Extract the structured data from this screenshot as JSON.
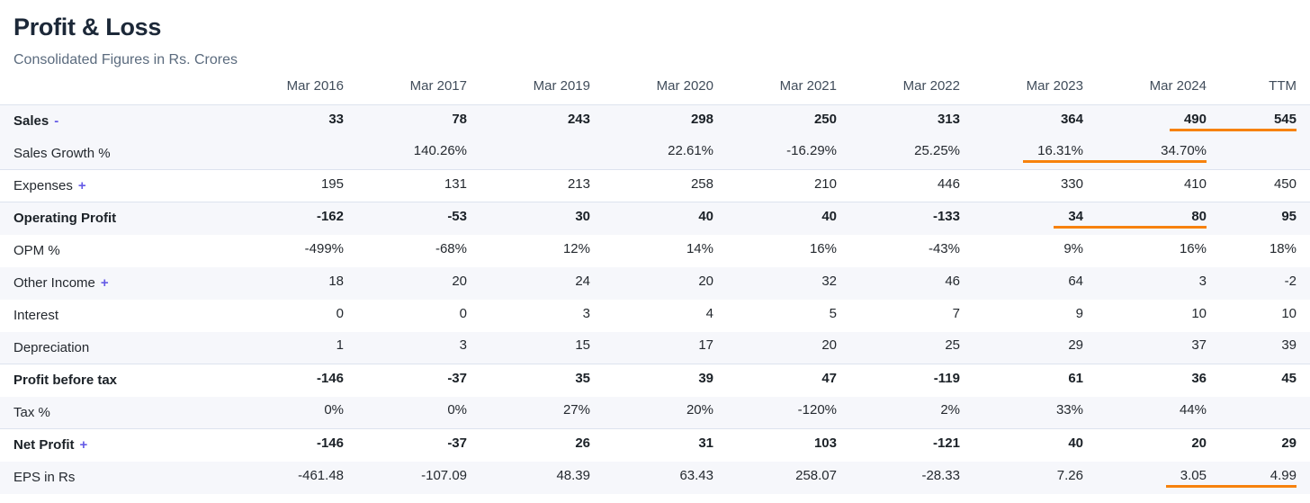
{
  "header": {
    "title": "Profit & Loss",
    "subtitle": "Consolidated Figures in Rs. Crores"
  },
  "table": {
    "columns": [
      "Mar 2016",
      "Mar 2017",
      "Mar 2019",
      "Mar 2020",
      "Mar 2021",
      "Mar 2022",
      "Mar 2023",
      "Mar 2024",
      "TTM"
    ],
    "rows": [
      {
        "label": "Sales",
        "suffix": "-",
        "bold": true,
        "values": [
          "33",
          "78",
          "243",
          "298",
          "250",
          "313",
          "364",
          "490",
          "545"
        ],
        "highlighted_columns": [
          7,
          8
        ]
      },
      {
        "label": "Sales Growth %",
        "divider": true,
        "values": [
          "",
          "140.26%",
          "",
          "22.61%",
          "-16.29%",
          "25.25%",
          "16.31%",
          "34.70%",
          ""
        ],
        "highlighted_columns": [
          6,
          7
        ]
      },
      {
        "label": "Expenses",
        "suffix": "+",
        "divider": true,
        "values": [
          "195",
          "131",
          "213",
          "258",
          "210",
          "446",
          "330",
          "410",
          "450"
        ]
      },
      {
        "label": "Operating Profit",
        "bold": true,
        "values": [
          "-162",
          "-53",
          "30",
          "40",
          "40",
          "-133",
          "34",
          "80",
          "95"
        ],
        "highlighted_columns": [
          6,
          7
        ]
      },
      {
        "label": "OPM %",
        "values": [
          "-499%",
          "-68%",
          "12%",
          "14%",
          "16%",
          "-43%",
          "9%",
          "16%",
          "18%"
        ]
      },
      {
        "label": "Other Income",
        "suffix": "+",
        "values": [
          "18",
          "20",
          "24",
          "20",
          "32",
          "46",
          "64",
          "3",
          "-2"
        ]
      },
      {
        "label": "Interest",
        "values": [
          "0",
          "0",
          "3",
          "4",
          "5",
          "7",
          "9",
          "10",
          "10"
        ]
      },
      {
        "label": "Depreciation",
        "divider": true,
        "values": [
          "1",
          "3",
          "15",
          "17",
          "20",
          "25",
          "29",
          "37",
          "39"
        ]
      },
      {
        "label": "Profit before tax",
        "bold": true,
        "values": [
          "-146",
          "-37",
          "35",
          "39",
          "47",
          "-119",
          "61",
          "36",
          "45"
        ]
      },
      {
        "label": "Tax %",
        "divider": true,
        "values": [
          "0%",
          "0%",
          "27%",
          "20%",
          "-120%",
          "2%",
          "33%",
          "44%",
          ""
        ]
      },
      {
        "label": "Net Profit",
        "suffix": "+",
        "bold": true,
        "values": [
          "-146",
          "-37",
          "26",
          "31",
          "103",
          "-121",
          "40",
          "20",
          "29"
        ]
      },
      {
        "label": "EPS in Rs",
        "values": [
          "-461.48",
          "-107.09",
          "48.39",
          "63.43",
          "258.07",
          "-28.33",
          "7.26",
          "3.05",
          "4.99"
        ],
        "highlighted_columns": [
          7,
          8
        ]
      }
    ]
  },
  "colors": {
    "title_text": "#1c2838",
    "subtitle_text": "#5b6b7e",
    "header_text": "#414d5b",
    "value_text": "#24292f",
    "bold_text": "#1b2127",
    "accent_purple": "#655be6",
    "highlight_orange": "#f7820d",
    "row_stripe": "#f6f7fb",
    "divider": "#dde3ee"
  }
}
